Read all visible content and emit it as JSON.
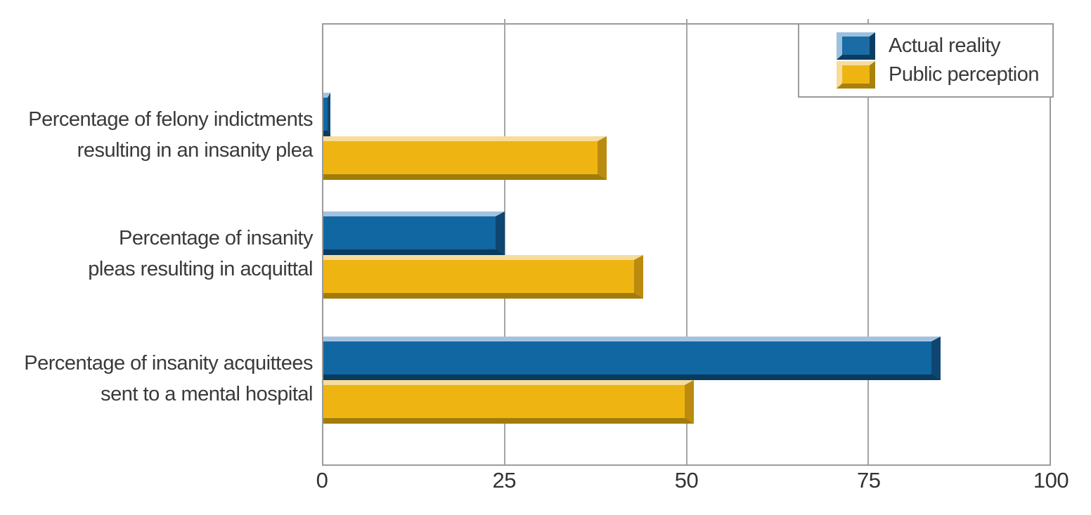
{
  "chart_data": {
    "type": "bar",
    "orientation": "horizontal",
    "title": "",
    "xlabel": "",
    "ylabel": "",
    "xlim": [
      0,
      100
    ],
    "grid": true,
    "categories": [
      {
        "line1": "Percentage of felony indictments",
        "line2": "resulting in an insanity plea"
      },
      {
        "line1": "Percentage of insanity",
        "line2": "pleas resulting in acquittal"
      },
      {
        "line1": "Percentage of insanity acquittees",
        "line2": "sent to a mental hospital"
      }
    ],
    "series": [
      {
        "name": "Actual reality",
        "values": [
          1,
          25,
          85
        ],
        "color": "#1067a2"
      },
      {
        "name": "Public perception",
        "values": [
          39,
          44,
          51
        ],
        "color": "#eeb512"
      }
    ],
    "x_axis": {
      "ticks": [
        "0",
        "25",
        "50",
        "75",
        "100"
      ],
      "tick_values": [
        0,
        25,
        50,
        75,
        100
      ],
      "gridline_values": [
        25,
        50,
        75
      ]
    },
    "legend": {
      "position": "top-right",
      "entries": [
        "Actual reality",
        "Public perception"
      ]
    }
  },
  "colors": {
    "actual_reality_front": "#1067a2",
    "actual_reality_bevel_light": "#a3c2df",
    "actual_reality_bevel_dark": "#0a3a5e",
    "public_perception_front": "#eeb512",
    "public_perception_bevel_light": "#f6dc9d",
    "public_perception_bevel_dark": "#a17c0a",
    "axis_gray": "#9b9b9b",
    "text": "#3a3a3a",
    "background": "#ffffff"
  }
}
